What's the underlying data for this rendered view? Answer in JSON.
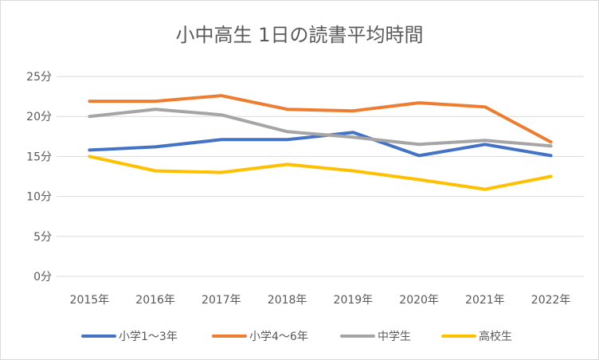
{
  "chart_data": {
    "type": "line",
    "title": "小中高生 1日の読書平均時間",
    "xlabel": "",
    "ylabel": "",
    "categories": [
      "2015年",
      "2016年",
      "2017年",
      "2018年",
      "2019年",
      "2020年",
      "2021年",
      "2022年"
    ],
    "ylim": [
      0,
      25
    ],
    "yticks": [
      0,
      5,
      10,
      15,
      20,
      25
    ],
    "ytick_labels": [
      "0分",
      "5分",
      "10分",
      "15分",
      "20分",
      "25分"
    ],
    "grid": true,
    "legend_position": "bottom",
    "series": [
      {
        "name": "小学1～3年",
        "color": "#4472c4",
        "values": [
          15.8,
          16.2,
          17.1,
          17.1,
          18.0,
          15.1,
          16.5,
          15.1
        ]
      },
      {
        "name": "小学4～6年",
        "color": "#ed7d31",
        "values": [
          21.9,
          21.9,
          22.6,
          20.9,
          20.7,
          21.7,
          21.2,
          16.8
        ]
      },
      {
        "name": "中学生",
        "color": "#a5a5a5",
        "values": [
          20.0,
          20.9,
          20.2,
          18.1,
          17.4,
          16.5,
          17.0,
          16.3
        ]
      },
      {
        "name": "高校生",
        "color": "#ffc000",
        "values": [
          15.0,
          13.2,
          13.0,
          14.0,
          13.2,
          12.1,
          10.9,
          12.5
        ]
      }
    ]
  }
}
